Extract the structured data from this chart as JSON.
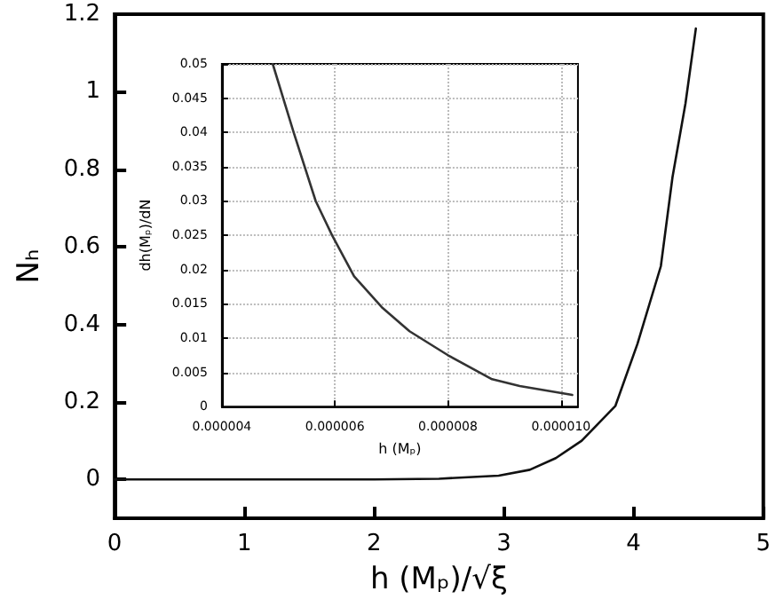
{
  "chart_data": [
    {
      "type": "line",
      "xlabel": "h (Mₚ)/√ξ",
      "ylabel": "Nₕ",
      "marker": "none",
      "series": [
        {
          "color": "#111111",
          "x": [
            0,
            1,
            2,
            2.5,
            2.96,
            3.2,
            3.4,
            3.6,
            3.86,
            4.03,
            4.21,
            4.3,
            4.4,
            4.48
          ],
          "values": [
            0,
            0,
            0,
            0.002,
            0.01,
            0.025,
            0.055,
            0.1,
            0.19,
            0.35,
            0.55,
            0.78,
            0.97,
            1.163
          ]
        }
      ],
      "xlim": [
        0,
        5
      ],
      "xticks": [
        0,
        1,
        2,
        3,
        4,
        5
      ],
      "ylim": [
        -0.1,
        1.2
      ],
      "yticks": [
        0,
        0.2,
        0.4,
        0.6,
        0.8,
        1,
        1.2
      ]
    },
    {
      "type": "line",
      "xlabel": "h (Mₚ)",
      "ylabel": "dh(Mₚ)/dN",
      "marker": "none",
      "grid": true,
      "series": [
        {
          "color": "#333333",
          "x": [
            4.9e-06,
            5.27e-06,
            5.66e-06,
            5.95e-06,
            6.34e-06,
            6.83e-06,
            7.32e-06,
            8e-06,
            8.78e-06,
            9.27e-06,
            1.02e-05
          ],
          "values": [
            0.05,
            0.04,
            0.03,
            0.025,
            0.019,
            0.0145,
            0.011,
            0.0075,
            0.004,
            0.003,
            0.0017
          ]
        }
      ],
      "xlim": [
        4e-06,
        1.03e-05
      ],
      "xticks": [
        {
          "value": 4e-06,
          "label": "0.000004"
        },
        {
          "value": 6e-06,
          "label": "0.000006"
        },
        {
          "value": 8e-06,
          "label": "0.000008"
        },
        {
          "value": 1e-05,
          "label": "0.000010"
        }
      ],
      "ylim": [
        0,
        0.05
      ],
      "yticks": [
        0,
        0.005,
        0.01,
        0.015,
        0.02,
        0.025,
        0.03,
        0.035,
        0.04,
        0.045,
        0.05
      ]
    }
  ]
}
